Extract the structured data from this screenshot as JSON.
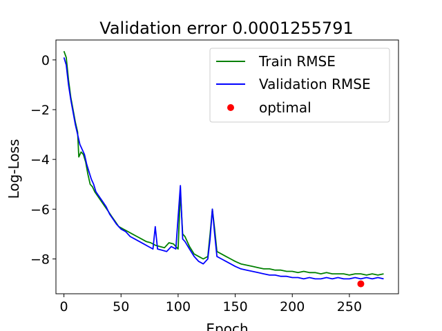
{
  "chart_data": {
    "type": "line",
    "title": "Validation error 0.0001255791",
    "xlabel": "Epoch",
    "ylabel": "Log-Loss",
    "xlim": [
      -7,
      293
    ],
    "ylim": [
      -9.4,
      0.8
    ],
    "xticks": [
      0,
      50,
      100,
      150,
      200,
      250
    ],
    "yticks": [
      0,
      -2,
      -4,
      -6,
      -8
    ],
    "ytick_labels": [
      "0",
      "−2",
      "−4",
      "−6",
      "−8"
    ],
    "grid": false,
    "legend_position": "top-right",
    "series": [
      {
        "name": "Train RMSE",
        "color": "#008000",
        "kind": "line",
        "points": [
          [
            0,
            0.35
          ],
          [
            2,
            0.1
          ],
          [
            4,
            -0.8
          ],
          [
            6,
            -1.5
          ],
          [
            8,
            -2.0
          ],
          [
            10,
            -2.5
          ],
          [
            12,
            -2.9
          ],
          [
            13,
            -3.9
          ],
          [
            15,
            -3.7
          ],
          [
            17,
            -3.8
          ],
          [
            19,
            -4.1
          ],
          [
            21,
            -4.6
          ],
          [
            23,
            -5.0
          ],
          [
            25,
            -5.1
          ],
          [
            27,
            -5.3
          ],
          [
            30,
            -5.5
          ],
          [
            33,
            -5.7
          ],
          [
            36,
            -5.9
          ],
          [
            39,
            -6.1
          ],
          [
            42,
            -6.3
          ],
          [
            45,
            -6.5
          ],
          [
            48,
            -6.7
          ],
          [
            52,
            -6.8
          ],
          [
            56,
            -6.9
          ],
          [
            60,
            -7.0
          ],
          [
            64,
            -7.1
          ],
          [
            68,
            -7.2
          ],
          [
            72,
            -7.3
          ],
          [
            76,
            -7.35
          ],
          [
            80,
            -7.45
          ],
          [
            84,
            -7.5
          ],
          [
            88,
            -7.55
          ],
          [
            92,
            -7.35
          ],
          [
            96,
            -7.4
          ],
          [
            100,
            -7.6
          ],
          [
            102,
            -5.3
          ],
          [
            104,
            -7.0
          ],
          [
            106,
            -7.1
          ],
          [
            110,
            -7.5
          ],
          [
            114,
            -7.8
          ],
          [
            118,
            -7.9
          ],
          [
            122,
            -8.0
          ],
          [
            126,
            -7.9
          ],
          [
            128,
            -7.0
          ],
          [
            130,
            -6.0
          ],
          [
            132,
            -6.8
          ],
          [
            134,
            -7.7
          ],
          [
            138,
            -7.8
          ],
          [
            142,
            -7.9
          ],
          [
            146,
            -8.0
          ],
          [
            150,
            -8.1
          ],
          [
            155,
            -8.2
          ],
          [
            160,
            -8.25
          ],
          [
            165,
            -8.3
          ],
          [
            170,
            -8.35
          ],
          [
            175,
            -8.4
          ],
          [
            180,
            -8.4
          ],
          [
            185,
            -8.45
          ],
          [
            190,
            -8.45
          ],
          [
            195,
            -8.5
          ],
          [
            200,
            -8.5
          ],
          [
            205,
            -8.55
          ],
          [
            210,
            -8.5
          ],
          [
            215,
            -8.55
          ],
          [
            220,
            -8.55
          ],
          [
            225,
            -8.6
          ],
          [
            230,
            -8.55
          ],
          [
            235,
            -8.6
          ],
          [
            240,
            -8.6
          ],
          [
            245,
            -8.6
          ],
          [
            250,
            -8.65
          ],
          [
            255,
            -8.6
          ],
          [
            260,
            -8.6
          ],
          [
            265,
            -8.65
          ],
          [
            270,
            -8.6
          ],
          [
            275,
            -8.65
          ],
          [
            280,
            -8.6
          ]
        ]
      },
      {
        "name": "Validation RMSE",
        "color": "#0000ff",
        "kind": "line",
        "points": [
          [
            0,
            0.1
          ],
          [
            2,
            -0.2
          ],
          [
            4,
            -1.0
          ],
          [
            6,
            -1.6
          ],
          [
            8,
            -2.1
          ],
          [
            10,
            -2.6
          ],
          [
            12,
            -3.0
          ],
          [
            14,
            -3.4
          ],
          [
            16,
            -3.6
          ],
          [
            18,
            -3.8
          ],
          [
            20,
            -4.2
          ],
          [
            22,
            -4.5
          ],
          [
            24,
            -4.8
          ],
          [
            26,
            -5.0
          ],
          [
            28,
            -5.3
          ],
          [
            31,
            -5.5
          ],
          [
            34,
            -5.7
          ],
          [
            37,
            -5.9
          ],
          [
            40,
            -6.2
          ],
          [
            43,
            -6.4
          ],
          [
            46,
            -6.6
          ],
          [
            50,
            -6.8
          ],
          [
            54,
            -6.9
          ],
          [
            58,
            -7.1
          ],
          [
            62,
            -7.2
          ],
          [
            66,
            -7.3
          ],
          [
            70,
            -7.4
          ],
          [
            74,
            -7.5
          ],
          [
            78,
            -7.6
          ],
          [
            80,
            -6.7
          ],
          [
            82,
            -7.6
          ],
          [
            86,
            -7.65
          ],
          [
            90,
            -7.7
          ],
          [
            94,
            -7.5
          ],
          [
            98,
            -7.6
          ],
          [
            102,
            -5.05
          ],
          [
            104,
            -7.2
          ],
          [
            106,
            -7.3
          ],
          [
            110,
            -7.6
          ],
          [
            114,
            -7.9
          ],
          [
            118,
            -8.1
          ],
          [
            122,
            -8.2
          ],
          [
            126,
            -8.0
          ],
          [
            128,
            -7.2
          ],
          [
            130,
            -6.0
          ],
          [
            132,
            -7.0
          ],
          [
            134,
            -7.9
          ],
          [
            138,
            -8.0
          ],
          [
            142,
            -8.1
          ],
          [
            146,
            -8.2
          ],
          [
            150,
            -8.3
          ],
          [
            155,
            -8.4
          ],
          [
            160,
            -8.45
          ],
          [
            165,
            -8.5
          ],
          [
            170,
            -8.55
          ],
          [
            175,
            -8.6
          ],
          [
            180,
            -8.65
          ],
          [
            185,
            -8.65
          ],
          [
            190,
            -8.7
          ],
          [
            195,
            -8.7
          ],
          [
            200,
            -8.75
          ],
          [
            205,
            -8.75
          ],
          [
            210,
            -8.8
          ],
          [
            215,
            -8.75
          ],
          [
            220,
            -8.8
          ],
          [
            225,
            -8.8
          ],
          [
            230,
            -8.75
          ],
          [
            235,
            -8.8
          ],
          [
            240,
            -8.75
          ],
          [
            245,
            -8.8
          ],
          [
            250,
            -8.8
          ],
          [
            255,
            -8.75
          ],
          [
            260,
            -8.8
          ],
          [
            265,
            -8.75
          ],
          [
            270,
            -8.8
          ],
          [
            275,
            -8.75
          ],
          [
            280,
            -8.8
          ]
        ]
      },
      {
        "name": "optimal",
        "color": "#ff0000",
        "kind": "marker",
        "points": [
          [
            260,
            -9.0
          ]
        ]
      }
    ]
  }
}
